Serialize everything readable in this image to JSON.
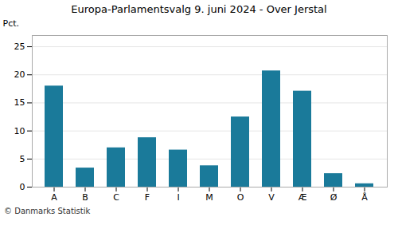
{
  "chart_data": {
    "type": "bar",
    "title": "Europa-Parlamentsvalg 9. juni 2024 - Over Jerstal",
    "categories": [
      "A",
      "B",
      "C",
      "F",
      "I",
      "M",
      "O",
      "V",
      "Æ",
      "Ø",
      "Å"
    ],
    "values": [
      18.0,
      3.4,
      7.0,
      8.8,
      6.6,
      3.8,
      12.5,
      20.7,
      17.1,
      2.4,
      0.6
    ],
    "color": "#1a7a9a",
    "y_label": "Pct.",
    "ylim": [
      0,
      27
    ],
    "yticks": [
      0,
      5,
      10,
      15,
      20,
      25
    ],
    "grid": true,
    "caption": "© Danmarks Statistik"
  }
}
